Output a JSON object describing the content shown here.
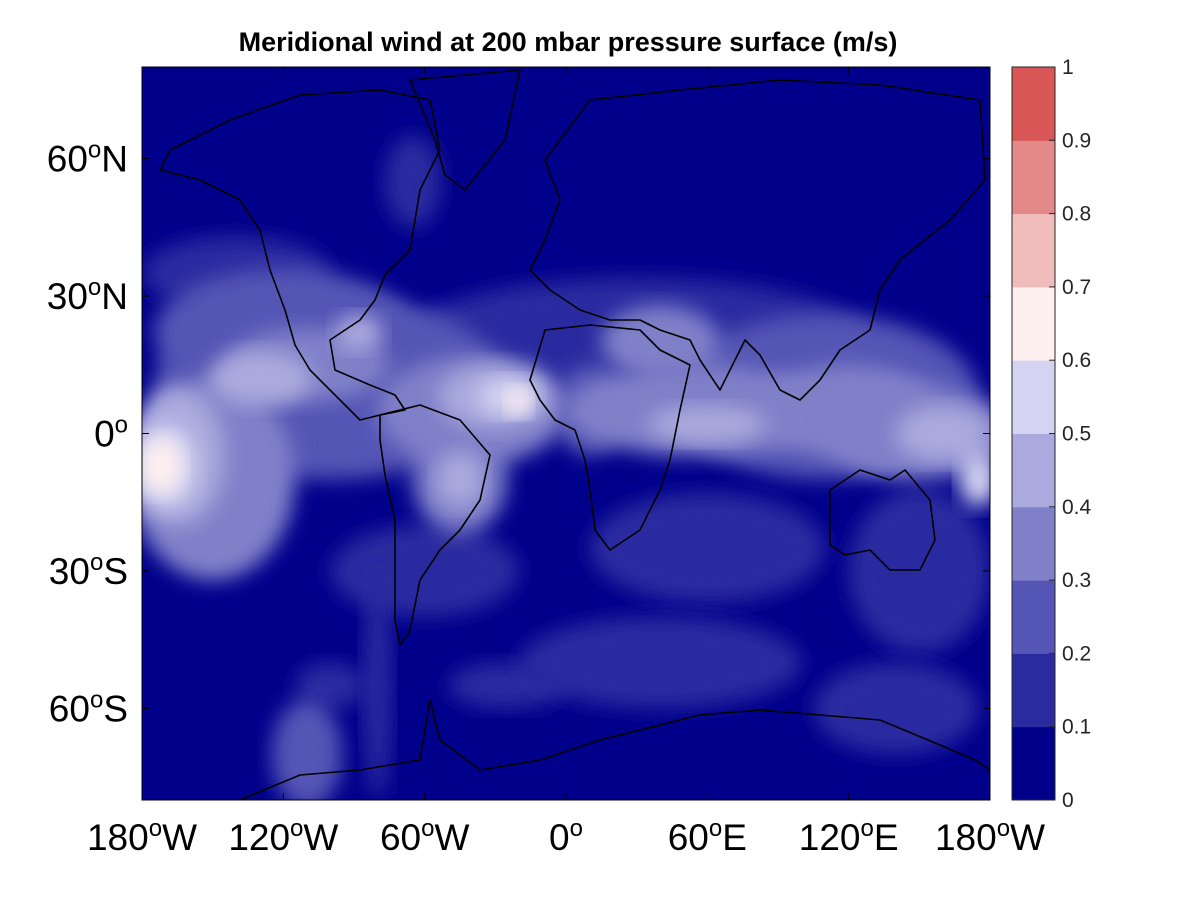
{
  "chart_data": {
    "type": "heatmap",
    "title": "Meridional wind at 200 mbar pressure surface (m/s)",
    "x_ticks": [
      {
        "value": -180,
        "num": "180",
        "dir": "W"
      },
      {
        "value": -120,
        "num": "120",
        "dir": "W"
      },
      {
        "value": -60,
        "num": "60",
        "dir": "W"
      },
      {
        "value": 0,
        "num": "0",
        "dir": ""
      },
      {
        "value": 60,
        "num": "60",
        "dir": "E"
      },
      {
        "value": 120,
        "num": "120",
        "dir": "E"
      },
      {
        "value": 180,
        "num": "180",
        "dir": "W"
      }
    ],
    "y_ticks": [
      {
        "value": 60,
        "num": "60",
        "dir": "N"
      },
      {
        "value": 30,
        "num": "30",
        "dir": "N"
      },
      {
        "value": 0,
        "num": "0",
        "dir": ""
      },
      {
        "value": -30,
        "num": "30",
        "dir": "S"
      },
      {
        "value": -60,
        "num": "60",
        "dir": "S"
      }
    ],
    "degree_symbol": "o",
    "xlim": [
      -180,
      180
    ],
    "ylim": [
      -80,
      80
    ],
    "colorbar": {
      "limits": [
        0,
        1
      ],
      "ticks": [
        "0",
        "0.1",
        "0.2",
        "0.3",
        "0.4",
        "0.5",
        "0.6",
        "0.7",
        "0.8",
        "0.9",
        "1"
      ],
      "level_colors": [
        "#00008b",
        "#2b2ba0",
        "#5555b5",
        "#8080c9",
        "#aaaade",
        "#d4d4f2",
        "#fff0f0",
        "#f0bcbc",
        "#e48989",
        "#d85656",
        "#cc2222"
      ]
    },
    "contour_blobs": [
      {
        "lon": -140,
        "lat": 35,
        "rx": 40,
        "ry": 8,
        "level": 1
      },
      {
        "lon": -120,
        "lat": 22,
        "rx": 55,
        "ry": 14,
        "level": 2
      },
      {
        "lon": -100,
        "lat": 10,
        "rx": 75,
        "ry": 20,
        "level": 2
      },
      {
        "lon": 30,
        "lat": 20,
        "rx": 100,
        "ry": 14,
        "level": 1
      },
      {
        "lon": 110,
        "lat": 8,
        "rx": 65,
        "ry": 18,
        "level": 2
      },
      {
        "lon": -60,
        "lat": -30,
        "rx": 40,
        "ry": 10,
        "level": 1
      },
      {
        "lon": 60,
        "lat": -25,
        "rx": 50,
        "ry": 12,
        "level": 1
      },
      {
        "lon": 150,
        "lat": -30,
        "rx": 30,
        "ry": 18,
        "level": 1
      },
      {
        "lon": -150,
        "lat": -10,
        "rx": 35,
        "ry": 22,
        "level": 3
      },
      {
        "lon": -165,
        "lat": -5,
        "rx": 20,
        "ry": 15,
        "level": 4
      },
      {
        "lon": -170,
        "lat": -7,
        "rx": 13,
        "ry": 9,
        "level": 5
      },
      {
        "lon": -172,
        "lat": -7,
        "rx": 9,
        "ry": 6,
        "level": 6
      },
      {
        "lon": -110,
        "lat": 15,
        "rx": 35,
        "ry": 8,
        "level": 3
      },
      {
        "lon": -130,
        "lat": 12,
        "rx": 22,
        "ry": 6,
        "level": 4
      },
      {
        "lon": -88,
        "lat": 22,
        "rx": 10,
        "ry": 4,
        "level": 4
      },
      {
        "lon": -85,
        "lat": 5,
        "rx": 15,
        "ry": 10,
        "level": 2
      },
      {
        "lon": -40,
        "lat": 5,
        "rx": 40,
        "ry": 12,
        "level": 3
      },
      {
        "lon": -30,
        "lat": 8,
        "rx": 24,
        "ry": 7,
        "level": 4
      },
      {
        "lon": -25,
        "lat": 8,
        "rx": 12,
        "ry": 4,
        "level": 5
      },
      {
        "lon": -20,
        "lat": 7,
        "rx": 5,
        "ry": 3,
        "level": 6
      },
      {
        "lon": -45,
        "lat": -10,
        "rx": 20,
        "ry": 12,
        "level": 3
      },
      {
        "lon": -45,
        "lat": -10,
        "rx": 10,
        "ry": 6,
        "level": 4
      },
      {
        "lon": 10,
        "lat": 5,
        "rx": 15,
        "ry": 10,
        "level": 2
      },
      {
        "lon": 40,
        "lat": 20,
        "rx": 25,
        "ry": 8,
        "level": 3
      },
      {
        "lon": 55,
        "lat": 5,
        "rx": 55,
        "ry": 10,
        "level": 3
      },
      {
        "lon": 60,
        "lat": 2,
        "rx": 25,
        "ry": 4,
        "level": 4
      },
      {
        "lon": 120,
        "lat": 5,
        "rx": 40,
        "ry": 10,
        "level": 3
      },
      {
        "lon": 150,
        "lat": 0,
        "rx": 40,
        "ry": 10,
        "level": 3
      },
      {
        "lon": 160,
        "lat": 0,
        "rx": 20,
        "ry": 6,
        "level": 4
      },
      {
        "lon": 175,
        "lat": -10,
        "rx": 8,
        "ry": 6,
        "level": 5
      },
      {
        "lon": -65,
        "lat": 55,
        "rx": 12,
        "ry": 10,
        "level": 1
      },
      {
        "lon": -100,
        "lat": -55,
        "rx": 15,
        "ry": 5,
        "level": 1
      },
      {
        "lon": -110,
        "lat": -70,
        "rx": 15,
        "ry": 12,
        "level": 2
      },
      {
        "lon": -80,
        "lat": -55,
        "rx": 6,
        "ry": 25,
        "level": 1
      },
      {
        "lon": -25,
        "lat": -55,
        "rx": 25,
        "ry": 5,
        "level": 1
      },
      {
        "lon": 40,
        "lat": -50,
        "rx": 60,
        "ry": 10,
        "level": 1
      },
      {
        "lon": 140,
        "lat": -60,
        "rx": 35,
        "ry": 10,
        "level": 1
      }
    ]
  }
}
